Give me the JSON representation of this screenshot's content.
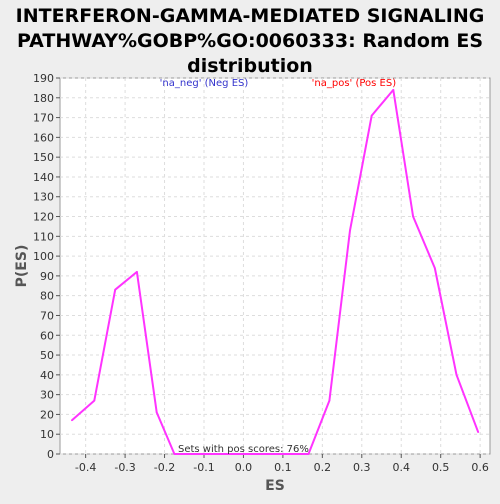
{
  "chart_data": {
    "type": "line",
    "title_lines": [
      "INTERFERON-GAMMA-MEDIATED SIGNALING",
      "PATHWAY%GOBP%GO:0060333: Random ES",
      "distribution"
    ],
    "xlabel": "ES",
    "ylabel": "P(ES)",
    "xlim": [
      -0.465,
      0.625
    ],
    "ylim": [
      0,
      190
    ],
    "xticks": [
      -0.4,
      -0.3,
      -0.2,
      -0.1,
      0.0,
      0.1,
      0.2,
      0.3,
      0.4,
      0.5,
      0.6
    ],
    "xtick_labels": [
      "-0.4",
      "-0.3",
      "-0.2",
      "-0.1",
      "0.0",
      "0.1",
      "0.2",
      "0.3",
      "0.4",
      "0.5",
      "0.6"
    ],
    "yticks": [
      0,
      10,
      20,
      30,
      40,
      50,
      60,
      70,
      80,
      90,
      100,
      110,
      120,
      130,
      140,
      150,
      160,
      170,
      180,
      190
    ],
    "grid": true,
    "series": [
      {
        "name": "",
        "color": "#ff33ff",
        "x": [
          -0.435,
          -0.378,
          -0.325,
          -0.27,
          -0.22,
          -0.175,
          -0.12,
          -0.06,
          0.0,
          0.06,
          0.12,
          0.165,
          0.218,
          0.27,
          0.325,
          0.38,
          0.43,
          0.485,
          0.54,
          0.595
        ],
        "y": [
          17,
          27,
          83,
          92,
          21,
          0,
          0,
          0,
          0,
          0,
          0,
          0,
          27,
          113,
          171,
          184,
          120,
          94,
          40,
          11
        ]
      }
    ],
    "annotations": [
      {
        "text": "'na_neg' (Neg ES)",
        "color": "#3333cc",
        "x": -0.1,
        "y": 186
      },
      {
        "text": "'na_pos' (Pos ES)",
        "color": "#ff0000",
        "x": 0.28,
        "y": 186
      },
      {
        "text": "Sets with pos scores: 76%",
        "color": "#333333",
        "x": 0.0,
        "y": 1
      }
    ]
  }
}
